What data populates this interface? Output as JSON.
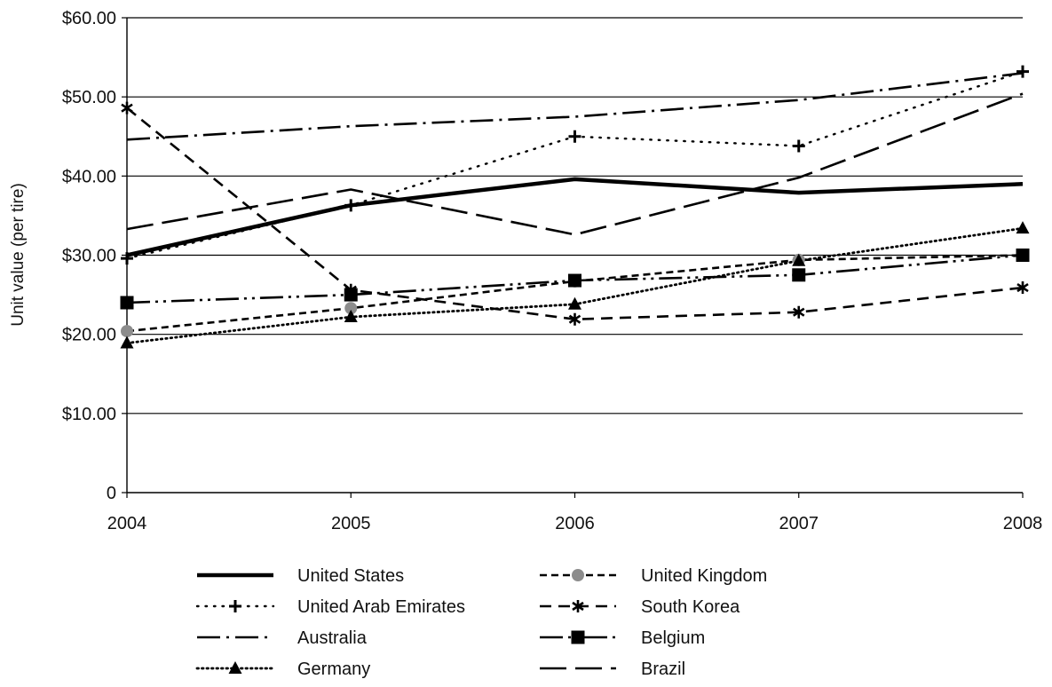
{
  "chart_data": {
    "type": "line",
    "title": "",
    "xlabel": "",
    "ylabel": "Unit value (per tire)",
    "x": [
      2004,
      2005,
      2006,
      2007,
      2008
    ],
    "x_tick_labels": [
      "2004",
      "2005",
      "2006",
      "2007",
      "2008"
    ],
    "ylim": [
      0,
      60
    ],
    "y_ticks": [
      0,
      10,
      20,
      30,
      40,
      50,
      60
    ],
    "y_tick_labels": [
      "0",
      "$10.00",
      "$20.00",
      "$30.00",
      "$40.00",
      "$50.00",
      "$60.00"
    ],
    "grid": "horizontal",
    "legend_position": "bottom",
    "series": [
      {
        "name": "United States",
        "values": [
          30.0,
          36.3,
          39.6,
          37.9,
          39.0
        ],
        "style": "solid-thick",
        "marker": "none",
        "color": "#000000"
      },
      {
        "name": "United Kingdom",
        "values": [
          20.4,
          23.3,
          26.7,
          29.4,
          30.0
        ],
        "style": "short-dash",
        "marker": "circle",
        "color": "#000000",
        "marker_color": "#8c8c8c"
      },
      {
        "name": "United Arab Emirates",
        "values": [
          29.6,
          36.3,
          45.0,
          43.8,
          53.2
        ],
        "style": "dotted",
        "marker": "plus",
        "color": "#000000"
      },
      {
        "name": "South Korea",
        "values": [
          48.6,
          25.6,
          21.9,
          22.8,
          25.9
        ],
        "style": "dash",
        "marker": "asterisk",
        "color": "#000000"
      },
      {
        "name": "Australia",
        "values": [
          44.6,
          46.3,
          47.5,
          49.6,
          53.0
        ],
        "style": "dash-dot",
        "marker": "none",
        "color": "#000000"
      },
      {
        "name": "Belgium",
        "values": [
          24.0,
          25.0,
          26.8,
          27.5,
          30.0
        ],
        "style": "dash-dot-dot",
        "marker": "square",
        "color": "#000000"
      },
      {
        "name": "Germany",
        "values": [
          18.9,
          22.2,
          23.8,
          29.3,
          33.4
        ],
        "style": "dotted-dense",
        "marker": "triangle",
        "color": "#000000"
      },
      {
        "name": "Brazil",
        "values": [
          33.3,
          38.3,
          32.6,
          39.8,
          50.4
        ],
        "style": "long-dash",
        "marker": "none",
        "color": "#000000"
      }
    ]
  }
}
